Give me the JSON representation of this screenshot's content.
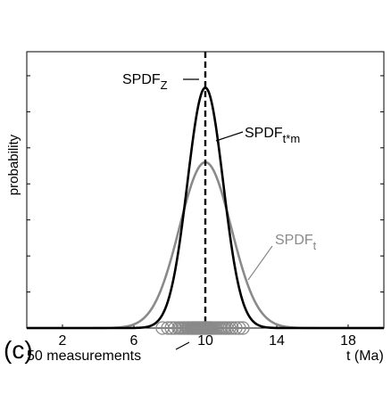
{
  "chart_data": {
    "type": "line",
    "panel_label": "(c)",
    "xlabel": "t (Ma)",
    "ylabel": "probability",
    "xlim": [
      0,
      20
    ],
    "ylim": [
      0,
      1.15
    ],
    "x_ticks": [
      2,
      6,
      10,
      14,
      18
    ],
    "x_tick_labels": [
      "2",
      "6",
      "10",
      "14",
      "18"
    ],
    "grid": false,
    "colors": {
      "black_curve": "#000000",
      "gray_curve": "#8a8a8a",
      "markers": "#8a8a8a"
    },
    "series": [
      {
        "name": "SPDF_z",
        "kind": "vertical-dashed-line",
        "x": 10,
        "label_main": "SPDF",
        "label_sub": "Z"
      },
      {
        "name": "SPDF_t*m",
        "kind": "gaussian",
        "mean": 10,
        "sd": 1.0,
        "peak": 1.0,
        "label_main": "SPDF",
        "label_sub": "t*m"
      },
      {
        "name": "SPDF_t",
        "kind": "gaussian",
        "mean": 10,
        "sd": 1.45,
        "peak": 0.69,
        "label_main": "SPDF",
        "label_sub": "t"
      }
    ],
    "measurements": {
      "label": "50 measurements",
      "x": [
        7.6,
        7.9,
        8.1,
        8.3,
        8.5,
        8.6,
        8.7,
        8.8,
        8.9,
        9.0,
        9.05,
        9.1,
        9.2,
        9.25,
        9.3,
        9.35,
        9.4,
        9.45,
        9.5,
        9.55,
        9.6,
        9.65,
        9.7,
        9.75,
        9.8,
        9.85,
        9.9,
        9.95,
        10.0,
        10.05,
        10.1,
        10.15,
        10.2,
        10.25,
        10.3,
        10.35,
        10.4,
        10.5,
        10.6,
        10.7,
        10.8,
        10.9,
        11.0,
        11.1,
        11.2,
        11.35,
        11.5,
        11.7,
        11.9,
        12.1
      ]
    }
  }
}
